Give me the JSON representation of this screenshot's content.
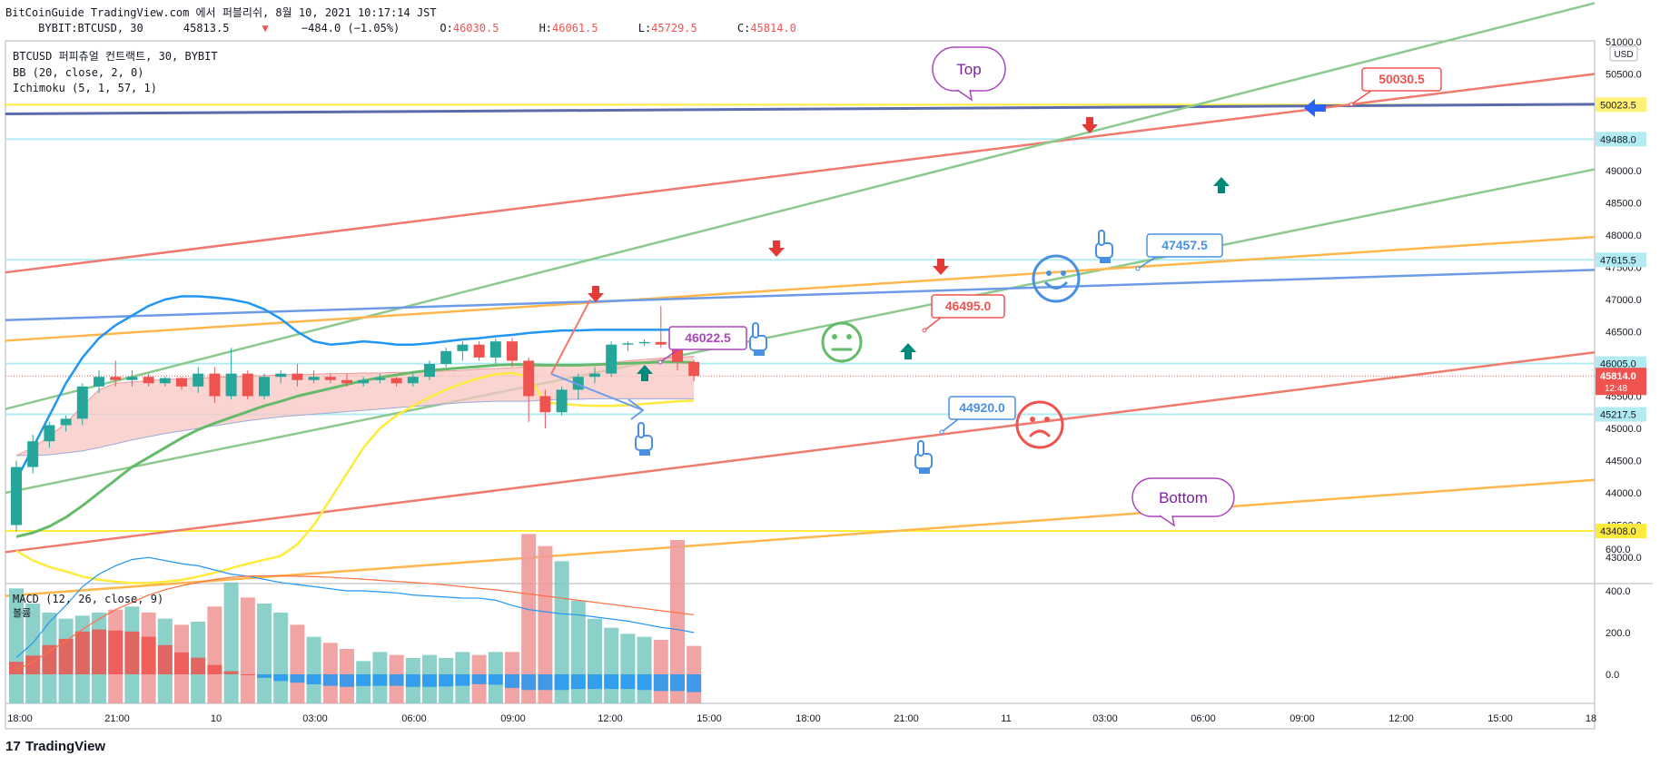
{
  "header": {
    "line1": "BitCoinGuide TradingView.com 에서 퍼블리쉬, 8월 10, 2021 10:17:14 JST",
    "symbol": "BYBIT:BTCUSD, 30",
    "last": "45813.5",
    "change": "−484.0 (−1.05%)",
    "ohlc": [
      {
        "k": "O:",
        "v": "46030.5"
      },
      {
        "k": "H:",
        "v": "46061.5"
      },
      {
        "k": "L:",
        "v": "45729.5"
      },
      {
        "k": "C:",
        "v": "45814.0"
      }
    ]
  },
  "legend": {
    "series": "BTCUSD 퍼피츄얼 컨트랙트, 30, BYBIT",
    "bb": "BB (20, close, 2, 0)",
    "ichimoku": "Ichimoku (5, 1, 57, 1)",
    "macd": "MACD (12, 26, close, 9)",
    "volume": "볼륨"
  },
  "price_axis": {
    "unit": "USD",
    "ticks": [
      51000,
      50500,
      50000,
      49500,
      49000,
      48500,
      48000,
      47500,
      47000,
      46500,
      46000,
      45500,
      45000,
      44500,
      44000,
      43500,
      43000
    ],
    "labels": [
      "51000.0",
      "50500.0",
      "50000.0",
      "49500.0",
      "49000.0",
      "48500.0",
      "48000.0",
      "47500.0",
      "47000.0",
      "46500.0",
      "46000.0",
      "45500.0",
      "45000.0",
      "44500.0",
      "44000.0",
      "43500.0",
      "43000.0"
    ],
    "markers": [
      {
        "value": 50023.5,
        "label": "50023.5",
        "color": "#fff176"
      },
      {
        "value": 49488.0,
        "label": "49488.0",
        "color": "#b2ebf2"
      },
      {
        "value": 47615.5,
        "label": "47615.5",
        "color": "#b2ebf2"
      },
      {
        "value": 46005.0,
        "label": "46005.0",
        "color": "#b2ebf2"
      },
      {
        "value": 45217.5,
        "label": "45217.5",
        "color": "#b2ebf2"
      },
      {
        "value": 43408.0,
        "label": "43408.0",
        "color": "#ffeb3b"
      }
    ],
    "current": {
      "value": 45814.0,
      "label": "45814.0",
      "countdown": "12:48",
      "color": "#ef5350"
    }
  },
  "macd_axis": {
    "ticks": [
      600,
      400,
      200,
      0
    ],
    "labels": [
      "600.0",
      "400.0",
      "200.0",
      "0.0"
    ]
  },
  "time_axis": {
    "labels": [
      "18:00",
      "21:00",
      "10",
      "03:00",
      "06:00",
      "09:00",
      "12:00",
      "15:00",
      "18:00",
      "21:00",
      "11",
      "03:00",
      "06:00",
      "09:00",
      "12:00",
      "15:00",
      "18"
    ]
  },
  "annotations": {
    "top": "Top",
    "bottom": "Bottom",
    "price_labels": [
      {
        "label": "50030.5",
        "color": "#ef5350"
      },
      {
        "label": "47457.5",
        "color": "#4a90e2"
      },
      {
        "label": "46495.0",
        "color": "#ef5350"
      },
      {
        "label": "46022.5",
        "color": "#ab47bc"
      },
      {
        "label": "44920.0",
        "color": "#4a90e2"
      }
    ]
  },
  "brand": "TradingView",
  "chart_data": {
    "type": "candlestick",
    "title": "BTCUSD 퍼피츄얼 컨트랙트, 30, BYBIT",
    "ylim": [
      42700,
      51050
    ],
    "x_start": "2021-08-09 18:00",
    "x_interval_minutes": 30,
    "candles": [
      [
        43500,
        44500,
        43400,
        44400
      ],
      [
        44400,
        44900,
        44300,
        44800
      ],
      [
        44800,
        45100,
        44700,
        45050
      ],
      [
        45050,
        45200,
        44950,
        45150
      ],
      [
        45150,
        45700,
        45050,
        45650
      ],
      [
        45650,
        45900,
        45550,
        45800
      ],
      [
        45800,
        46050,
        45650,
        45750
      ],
      [
        45750,
        45900,
        45650,
        45800
      ],
      [
        45800,
        45850,
        45650,
        45700
      ],
      [
        45700,
        45800,
        45650,
        45780
      ],
      [
        45780,
        45800,
        45600,
        45650
      ],
      [
        45650,
        45950,
        45550,
        45850
      ],
      [
        45850,
        45950,
        45400,
        45500
      ],
      [
        45500,
        46250,
        45450,
        45850
      ],
      [
        45850,
        45900,
        45450,
        45500
      ],
      [
        45500,
        45850,
        45450,
        45800
      ],
      [
        45800,
        45900,
        45700,
        45850
      ],
      [
        45850,
        46000,
        45650,
        45750
      ],
      [
        45750,
        45900,
        45700,
        45800
      ],
      [
        45800,
        45850,
        45700,
        45750
      ],
      [
        45750,
        45850,
        45650,
        45700
      ],
      [
        45700,
        45800,
        45650,
        45750
      ],
      [
        45750,
        45850,
        45700,
        45780
      ],
      [
        45780,
        45800,
        45650,
        45700
      ],
      [
        45700,
        45850,
        45650,
        45800
      ],
      [
        45800,
        46050,
        45750,
        46000
      ],
      [
        46000,
        46250,
        45950,
        46200
      ],
      [
        46200,
        46350,
        46050,
        46300
      ],
      [
        46300,
        46350,
        46050,
        46100
      ],
      [
        46100,
        46400,
        46000,
        46350
      ],
      [
        46350,
        46400,
        45950,
        46050
      ],
      [
        46050,
        46100,
        45100,
        45500
      ],
      [
        45500,
        45600,
        45000,
        45250
      ],
      [
        45250,
        45650,
        45200,
        45600
      ],
      [
        45600,
        45850,
        45450,
        45800
      ],
      [
        45800,
        45950,
        45700,
        45850
      ],
      [
        45850,
        46350,
        45800,
        46300
      ],
      [
        46300,
        46350,
        46200,
        46320
      ],
      [
        46320,
        46380,
        46280,
        46340
      ],
      [
        46340,
        46900,
        46250,
        46300
      ],
      [
        46300,
        46320,
        45900,
        46030
      ],
      [
        46030,
        46061,
        45729,
        45814
      ]
    ],
    "macd": [
      {
        "name": "MACD",
        "values": [
          80,
          150,
          250,
          330,
          420,
          480,
          520,
          550,
          560,
          545,
          530,
          520,
          500,
          480,
          470,
          455,
          440,
          430,
          420,
          410,
          400,
          400,
          395,
          390,
          380,
          375,
          370,
          365,
          365,
          355,
          330,
          310,
          300,
          290,
          285,
          275,
          265,
          255,
          240,
          225,
          215,
          200
        ]
      },
      {
        "name": "Signal",
        "values": [
          20,
          60,
          110,
          160,
          215,
          265,
          310,
          345,
          380,
          405,
          425,
          440,
          455,
          465,
          470,
          472,
          472,
          470,
          468,
          465,
          460,
          456,
          450,
          445,
          440,
          435,
          428,
          420,
          412,
          405,
          395,
          385,
          375,
          365,
          355,
          345,
          335,
          325,
          315,
          305,
          295,
          285
        ]
      }
    ],
    "volume": [
      380,
      330,
      300,
      280,
      290,
      300,
      310,
      320,
      300,
      280,
      260,
      270,
      320,
      400,
      350,
      330,
      300,
      260,
      220,
      200,
      180,
      140,
      170,
      160,
      150,
      160,
      150,
      170,
      160,
      170,
      170,
      560,
      520,
      470,
      340,
      280,
      250,
      230,
      220,
      210,
      540,
      190
    ]
  }
}
